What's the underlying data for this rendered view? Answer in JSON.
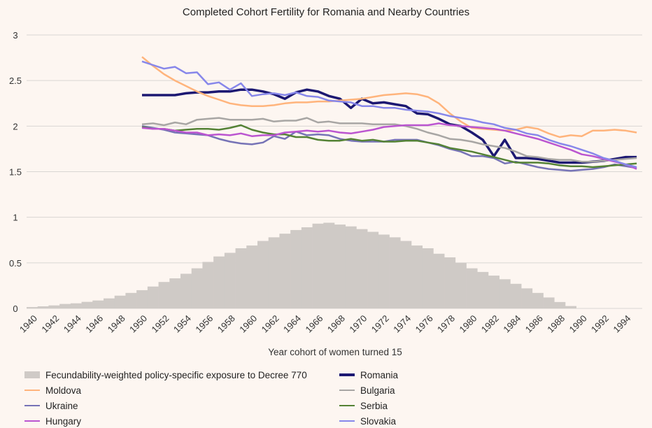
{
  "chart_data": {
    "type": "bar+line",
    "title": "Completed Cohort Fertility for Romania and Nearby Countries",
    "xlabel": "Year cohort of women turned 15",
    "ylabel": "",
    "ylim": [
      0,
      3
    ],
    "yticks": [
      "0",
      "0.5",
      "1",
      "1.5",
      "2",
      "2.5",
      "3"
    ],
    "ytick_values": [
      0,
      0.5,
      1,
      1.5,
      2,
      2.5,
      3
    ],
    "grid": true,
    "legend_position": "bottom",
    "x_start": 1940,
    "x_end": 1995,
    "xtick_labels": [
      "1940",
      "1942",
      "1944",
      "1946",
      "1948",
      "1950",
      "1952",
      "1954",
      "1956",
      "1958",
      "1960",
      "1962",
      "1964",
      "1966",
      "1968",
      "1970",
      "1972",
      "1974",
      "1976",
      "1978",
      "1980",
      "1982",
      "1984",
      "1986",
      "1988",
      "1990",
      "1992",
      "1994"
    ],
    "bar_series": {
      "name": "Fecundability-weighted policy-specific exposure to Decree 770",
      "color": "#cfcac6",
      "x_start": 1940,
      "values": [
        0.015,
        0.023,
        0.033,
        0.049,
        0.056,
        0.072,
        0.087,
        0.11,
        0.14,
        0.17,
        0.2,
        0.24,
        0.29,
        0.33,
        0.38,
        0.44,
        0.51,
        0.57,
        0.61,
        0.66,
        0.69,
        0.74,
        0.78,
        0.82,
        0.86,
        0.89,
        0.93,
        0.94,
        0.92,
        0.9,
        0.87,
        0.84,
        0.81,
        0.78,
        0.74,
        0.69,
        0.66,
        0.6,
        0.56,
        0.5,
        0.44,
        0.4,
        0.36,
        0.32,
        0.27,
        0.22,
        0.17,
        0.12,
        0.07,
        0.026
      ]
    },
    "line_x_start": 1950,
    "series": [
      {
        "name": "Romania",
        "color": "#1c1872",
        "width": 3.5,
        "values": [
          2.34,
          2.34,
          2.34,
          2.34,
          2.36,
          2.37,
          2.37,
          2.38,
          2.38,
          2.4,
          2.4,
          2.38,
          2.35,
          2.3,
          2.37,
          2.4,
          2.38,
          2.33,
          2.3,
          2.2,
          2.3,
          2.25,
          2.26,
          2.24,
          2.22,
          2.14,
          2.13,
          2.08,
          2.02,
          2.0,
          1.93,
          1.85,
          1.67,
          1.85,
          1.65,
          1.65,
          1.64,
          1.62,
          1.6,
          1.6,
          1.6,
          1.61,
          1.62,
          1.64,
          1.66,
          1.66
        ]
      },
      {
        "name": "Moldova",
        "color": "#ffb47c",
        "width": 2.5,
        "values": [
          2.76,
          2.66,
          2.57,
          2.5,
          2.44,
          2.38,
          2.33,
          2.29,
          2.25,
          2.23,
          2.22,
          2.22,
          2.23,
          2.25,
          2.26,
          2.26,
          2.27,
          2.27,
          2.28,
          2.29,
          2.3,
          2.32,
          2.34,
          2.35,
          2.36,
          2.35,
          2.32,
          2.25,
          2.14,
          2.05,
          1.98,
          1.97,
          1.96,
          1.95,
          1.96,
          1.99,
          1.97,
          1.92,
          1.88,
          1.9,
          1.89,
          1.95,
          1.95,
          1.96,
          1.95,
          1.93
        ]
      },
      {
        "name": "Bulgaria",
        "color": "#a8a6a4",
        "width": 2.5,
        "values": [
          2.02,
          2.03,
          2.01,
          2.04,
          2.02,
          2.07,
          2.08,
          2.09,
          2.07,
          2.07,
          2.07,
          2.08,
          2.05,
          2.06,
          2.06,
          2.09,
          2.04,
          2.05,
          2.03,
          2.03,
          2.03,
          2.02,
          2.02,
          2.02,
          2.0,
          1.97,
          1.93,
          1.9,
          1.86,
          1.85,
          1.83,
          1.8,
          1.78,
          1.76,
          1.72,
          1.67,
          1.66,
          1.64,
          1.63,
          1.63,
          1.61,
          1.61,
          1.62,
          1.63,
          1.64,
          1.65
        ]
      },
      {
        "name": "Ukraine",
        "color": "#7673b6",
        "width": 2.5,
        "values": [
          2.0,
          1.98,
          1.96,
          1.93,
          1.92,
          1.91,
          1.9,
          1.86,
          1.83,
          1.81,
          1.8,
          1.82,
          1.89,
          1.86,
          1.94,
          1.9,
          1.91,
          1.9,
          1.86,
          1.84,
          1.83,
          1.83,
          1.83,
          1.85,
          1.85,
          1.85,
          1.82,
          1.79,
          1.75,
          1.72,
          1.67,
          1.67,
          1.65,
          1.59,
          1.61,
          1.58,
          1.55,
          1.53,
          1.52,
          1.51,
          1.52,
          1.53,
          1.55,
          1.58,
          1.56,
          1.54
        ]
      },
      {
        "name": "Serbia",
        "color": "#548235",
        "width": 2.5,
        "values": [
          1.99,
          1.97,
          1.97,
          1.95,
          1.96,
          1.97,
          1.97,
          1.96,
          1.98,
          2.01,
          1.96,
          1.93,
          1.91,
          1.91,
          1.88,
          1.88,
          1.85,
          1.84,
          1.84,
          1.86,
          1.84,
          1.85,
          1.83,
          1.83,
          1.84,
          1.84,
          1.82,
          1.8,
          1.76,
          1.74,
          1.72,
          1.69,
          1.66,
          1.63,
          1.6,
          1.6,
          1.6,
          1.59,
          1.57,
          1.56,
          1.56,
          1.55,
          1.56,
          1.57,
          1.58,
          1.59
        ]
      },
      {
        "name": "Hungary",
        "color": "#bb55d0",
        "width": 2.5,
        "values": [
          1.98,
          1.97,
          1.97,
          1.95,
          1.93,
          1.93,
          1.9,
          1.91,
          1.9,
          1.92,
          1.89,
          1.9,
          1.9,
          1.93,
          1.94,
          1.95,
          1.94,
          1.95,
          1.93,
          1.92,
          1.94,
          1.96,
          1.99,
          2.0,
          2.01,
          2.01,
          2.01,
          2.03,
          2.01,
          2.0,
          1.99,
          1.98,
          1.97,
          1.95,
          1.92,
          1.89,
          1.86,
          1.82,
          1.78,
          1.74,
          1.69,
          1.67,
          1.64,
          1.61,
          1.58,
          1.53
        ]
      },
      {
        "name": "Slovakia",
        "color": "#8787ea",
        "width": 2.5,
        "values": [
          2.71,
          2.67,
          2.63,
          2.65,
          2.58,
          2.59,
          2.46,
          2.48,
          2.4,
          2.47,
          2.33,
          2.35,
          2.36,
          2.34,
          2.37,
          2.33,
          2.32,
          2.28,
          2.27,
          2.26,
          2.22,
          2.22,
          2.2,
          2.2,
          2.18,
          2.17,
          2.16,
          2.14,
          2.11,
          2.09,
          2.07,
          2.04,
          2.02,
          1.98,
          1.96,
          1.92,
          1.9,
          1.85,
          1.81,
          1.78,
          1.74,
          1.7,
          1.65,
          1.62,
          1.58,
          1.55
        ]
      }
    ],
    "legend_order": [
      "bar",
      "Romania",
      "Moldova",
      "Bulgaria",
      "Ukraine",
      "Serbia",
      "Hungary",
      "Slovakia"
    ]
  }
}
